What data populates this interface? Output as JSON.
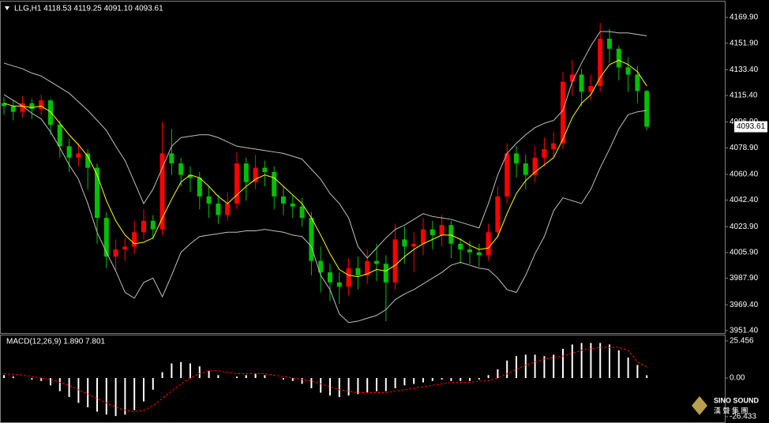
{
  "chart_data": [
    {
      "type": "candlestick",
      "title": "LLG,H1  4118.53 4119.25 4091.10 4093.61",
      "up_color": "#ff0000",
      "down_color": "#00c000",
      "open": [
        4110,
        4108,
        4104,
        4110,
        4106,
        4112,
        4095,
        4080,
        4072,
        4075,
        4065,
        4030,
        4003,
        4008,
        4010,
        4020,
        4028,
        4022,
        4075,
        4068,
        4060,
        4058,
        4045,
        4040,
        4032,
        4040,
        4068,
        4055,
        4065,
        4062,
        4045,
        4040,
        4038,
        4030,
        4000,
        3992,
        3985,
        3982,
        3995,
        3990,
        4000,
        3998,
        3985,
        4015,
        4010,
        4012,
        4022,
        4018,
        4025,
        4012,
        4008,
        4006,
        4004,
        4020,
        4045,
        4075,
        4068,
        4060,
        4072,
        4078,
        4082,
        4125,
        4130,
        4118,
        4122,
        4155,
        4148,
        4135,
        4130,
        4118.53
      ],
      "high": [
        4114,
        4112,
        4115,
        4113,
        4116,
        4113,
        4098,
        4085,
        4082,
        4078,
        4068,
        4034,
        4015,
        4016,
        4028,
        4036,
        4032,
        4097,
        4092,
        4072,
        4066,
        4062,
        4052,
        4046,
        4048,
        4076,
        4072,
        4074,
        4070,
        4066,
        4052,
        4046,
        4044,
        4034,
        4010,
        3998,
        3992,
        4002,
        4003,
        4008,
        4012,
        4004,
        4026,
        4024,
        4020,
        4030,
        4028,
        4032,
        4028,
        4016,
        4014,
        4012,
        4026,
        4052,
        4082,
        4080,
        4074,
        4080,
        4086,
        4090,
        4132,
        4140,
        4134,
        4130,
        4166,
        4162,
        4150,
        4142,
        4136,
        4119.25
      ],
      "low": [
        4102,
        4098,
        4100,
        4099,
        4102,
        4088,
        4072,
        4062,
        4066,
        4050,
        4012,
        3995,
        3993,
        4000,
        4005,
        4015,
        4015,
        4018,
        4060,
        4052,
        4048,
        4036,
        4030,
        4026,
        4028,
        4036,
        4042,
        4050,
        4052,
        4036,
        4032,
        4030,
        4024,
        3990,
        3978,
        3972,
        3970,
        3976,
        3980,
        3984,
        3986,
        3958,
        3980,
        3998,
        3992,
        4004,
        4008,
        4010,
        4002,
        3998,
        3998,
        3996,
        4000,
        4016,
        4040,
        4058,
        4050,
        4055,
        4066,
        4072,
        4078,
        4115,
        4108,
        4112,
        4118,
        4138,
        4126,
        4118,
        4110,
        4091.1
      ],
      "close": [
        4108,
        4104,
        4110,
        4106,
        4112,
        4095,
        4080,
        4072,
        4075,
        4065,
        4030,
        4003,
        4008,
        4010,
        4020,
        4028,
        4022,
        4075,
        4068,
        4060,
        4058,
        4045,
        4040,
        4032,
        4040,
        4068,
        4055,
        4065,
        4062,
        4045,
        4040,
        4038,
        4030,
        4000,
        3992,
        3985,
        3982,
        3995,
        3990,
        4000,
        3998,
        3985,
        4015,
        4010,
        4012,
        4022,
        4018,
        4025,
        4012,
        4008,
        4006,
        4004,
        4020,
        4045,
        4075,
        4068,
        4060,
        4072,
        4078,
        4082,
        4125,
        4130,
        4118,
        4122,
        4155,
        4148,
        4135,
        4130,
        4118.53,
        4093.61
      ],
      "lines": [
        {
          "color": "#c0c0c0",
          "values": [
            4138,
            4136,
            4134,
            4131,
            4129,
            4125,
            4121,
            4117,
            4111,
            4105,
            4098,
            4091,
            4080,
            4070,
            4055,
            4040,
            4050,
            4065,
            4080,
            4086,
            4087,
            4088,
            4088,
            4086,
            4083,
            4080,
            4079,
            4078,
            4077,
            4076,
            4075,
            4073,
            4071,
            4064,
            4057,
            4047,
            4040,
            4030,
            4010,
            4002,
            4009,
            4016,
            4022,
            4025,
            4029,
            4033,
            4031,
            4030,
            4029,
            4027,
            4025,
            4023,
            4040,
            4060,
            4075,
            4082,
            4088,
            4093,
            4096,
            4098,
            4105,
            4125,
            4138,
            4150,
            4160,
            4160,
            4159,
            4159,
            4158,
            4157
          ]
        },
        {
          "color": "#c0c0c0",
          "values": [
            4116,
            4112,
            4108,
            4103,
            4099,
            4090,
            4079,
            4067,
            4057,
            4040,
            4020,
            4006,
            3993,
            3978,
            3974,
            3985,
            3988,
            3975,
            3990,
            4006,
            4012,
            4017,
            4018,
            4019,
            4020,
            4020,
            4021,
            4021,
            4022,
            4021,
            4020,
            4018,
            4017,
            4010,
            3990,
            3980,
            3963,
            3957,
            3958,
            3960,
            3962,
            3966,
            3973,
            3977,
            3980,
            3984,
            3988,
            3992,
            3997,
            3999,
            3997,
            3995,
            3994,
            3988,
            3980,
            3978,
            3990,
            4005,
            4017,
            4035,
            4044,
            4042,
            4040,
            4050,
            4065,
            4078,
            4092,
            4102,
            4104,
            4105
          ]
        },
        {
          "color": "#ffff00",
          "values": [
            4110,
            4108,
            4108,
            4107,
            4108,
            4104,
            4096,
            4088,
            4081,
            4073,
            4060,
            4042,
            4028,
            4018,
            4012,
            4013,
            4016,
            4030,
            4043,
            4055,
            4060,
            4058,
            4052,
            4045,
            4040,
            4046,
            4052,
            4057,
            4060,
            4058,
            4052,
            4046,
            4040,
            4030,
            4018,
            4005,
            3994,
            3990,
            3989,
            3991,
            3994,
            3993,
            3997,
            4003,
            4008,
            4012,
            4015,
            4018,
            4018,
            4015,
            4011,
            4008,
            4009,
            4017,
            4033,
            4047,
            4056,
            4062,
            4067,
            4072,
            4085,
            4100,
            4110,
            4116,
            4128,
            4137,
            4140,
            4137,
            4132,
            4122
          ]
        }
      ],
      "last_price": 4093.61,
      "ylim": [
        3949.7,
        4180.9
      ],
      "yticks": [
        {
          "value": 4169.9,
          "label": "4169.90"
        },
        {
          "value": 4151.9,
          "label": "4151.90"
        },
        {
          "value": 4133.4,
          "label": "4133.40"
        },
        {
          "value": 4115.4,
          "label": "4115.40"
        },
        {
          "value": 4096.9,
          "label": "4096.90"
        },
        {
          "value": 4078.9,
          "label": "4078.90"
        },
        {
          "value": 4060.4,
          "label": "4060.40"
        },
        {
          "value": 4042.4,
          "label": "4042.40"
        },
        {
          "value": 4023.9,
          "label": "4023.90"
        },
        {
          "value": 4005.9,
          "label": "4005.90"
        },
        {
          "value": 3987.9,
          "label": "3987.90"
        },
        {
          "value": 3969.4,
          "label": "3969.40"
        },
        {
          "value": 3951.4,
          "label": "3951.40"
        }
      ]
    },
    {
      "type": "macd",
      "title": "MACD(12,26,9) 1.890 7.801",
      "color": "#ffffff",
      "values": [
        2,
        1,
        0,
        -1,
        -2,
        -5,
        -9,
        -13,
        -17,
        -20,
        -23,
        -25,
        -26,
        -25,
        -22,
        -16,
        -8,
        4,
        10,
        11,
        10,
        8,
        5,
        2,
        0,
        1,
        2,
        3,
        2,
        0,
        -1,
        -2,
        -4,
        -7,
        -10,
        -12,
        -13,
        -12,
        -11,
        -10,
        -9,
        -9,
        -7,
        -5,
        -4,
        -3,
        -2,
        -1,
        -2,
        -2,
        -2,
        -1,
        2,
        6,
        12,
        15,
        16,
        16,
        15,
        16,
        20,
        23,
        24,
        24,
        24,
        23,
        19,
        14,
        9,
        1.89
      ],
      "signal": {
        "color": "#ff0000",
        "values": [
          3,
          2.5,
          2,
          1,
          0,
          -1,
          -3,
          -5,
          -8,
          -11,
          -14,
          -17,
          -20,
          -22,
          -23,
          -22,
          -19,
          -14,
          -9,
          -4,
          0,
          3,
          5,
          5,
          4,
          3,
          3,
          3,
          3,
          2,
          1,
          0,
          -1,
          -2,
          -4,
          -6,
          -8,
          -9,
          -10,
          -10,
          -10,
          -10,
          -9,
          -8,
          -7,
          -6,
          -5,
          -4,
          -3,
          -3,
          -3,
          -2,
          -2,
          0,
          3,
          6,
          9,
          11,
          13,
          14,
          15,
          17,
          19,
          20,
          21,
          21,
          21,
          19,
          11,
          7.801
        ]
      },
      "ylim": [
        -29.7,
        29.2
      ],
      "yticks": [
        25.456,
        {
          "value": 0,
          "label": "0.00"
        },
        -26.433
      ]
    }
  ],
  "logo": {
    "name": "SINO SOUND",
    "subtitle": "漢 聲 集 團"
  }
}
